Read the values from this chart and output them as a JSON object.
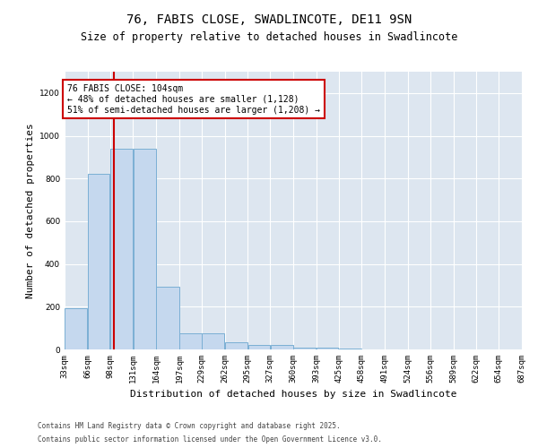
{
  "title1": "76, FABIS CLOSE, SWADLINCOTE, DE11 9SN",
  "title2": "Size of property relative to detached houses in Swadlincote",
  "xlabel": "Distribution of detached houses by size in Swadlincote",
  "ylabel": "Number of detached properties",
  "bin_edges": [
    33,
    66,
    98,
    131,
    164,
    197,
    229,
    262,
    295,
    327,
    360,
    393,
    425,
    458,
    491,
    524,
    556,
    589,
    622,
    654,
    687
  ],
  "bin_labels": [
    "33sqm",
    "66sqm",
    "98sqm",
    "131sqm",
    "164sqm",
    "197sqm",
    "229sqm",
    "262sqm",
    "295sqm",
    "327sqm",
    "360sqm",
    "393sqm",
    "425sqm",
    "458sqm",
    "491sqm",
    "524sqm",
    "556sqm",
    "589sqm",
    "622sqm",
    "654sqm",
    "687sqm"
  ],
  "values": [
    195,
    820,
    940,
    940,
    295,
    75,
    75,
    35,
    20,
    20,
    10,
    10,
    5,
    0,
    0,
    0,
    0,
    0,
    0,
    0
  ],
  "bar_color": "#c5d8ee",
  "bar_edge_color": "#7aafd4",
  "vline_x": 104,
  "vline_color": "#cc0000",
  "annotation_text": "76 FABIS CLOSE: 104sqm\n← 48% of detached houses are smaller (1,128)\n51% of semi-detached houses are larger (1,208) →",
  "annotation_box_color": "#ffffff",
  "annotation_box_edge": "#cc0000",
  "ylim": [
    0,
    1300
  ],
  "yticks": [
    0,
    200,
    400,
    600,
    800,
    1000,
    1200
  ],
  "background_color": "#dde6f0",
  "footer1": "Contains HM Land Registry data © Crown copyright and database right 2025.",
  "footer2": "Contains public sector information licensed under the Open Government Licence v3.0.",
  "title_fontsize": 10,
  "subtitle_fontsize": 8.5,
  "label_fontsize": 8,
  "tick_fontsize": 6.5,
  "footer_fontsize": 5.5,
  "annotation_fontsize": 7
}
